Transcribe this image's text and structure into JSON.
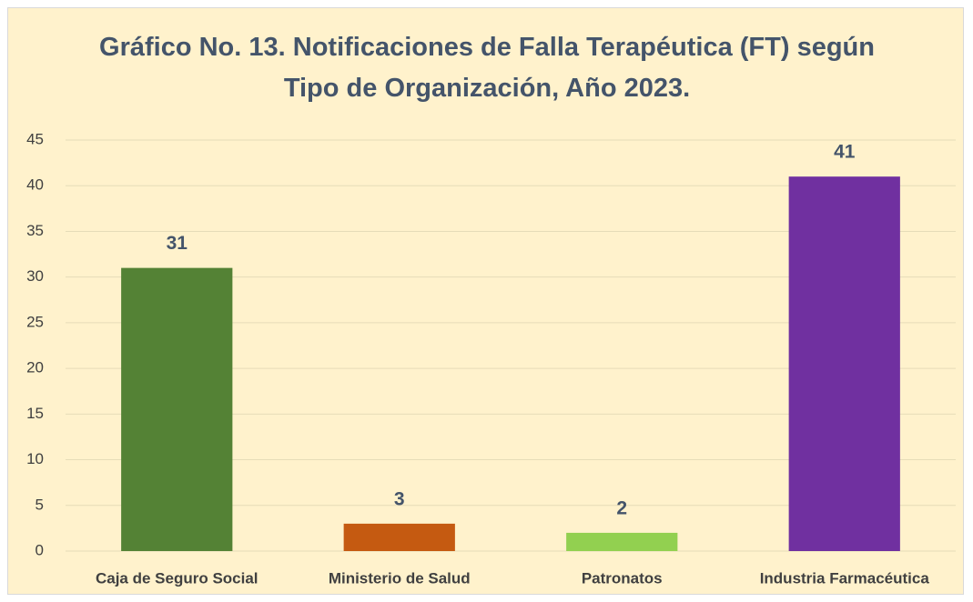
{
  "chart_data": {
    "type": "bar",
    "title": "Gráfico No. 13. Notificaciones de Falla Terapéutica (FT) según Tipo de Organización, Año 2023.",
    "categories": [
      "Caja de Seguro Social",
      "Ministerio de Salud",
      "Patronatos",
      "Industria Farmacéutica"
    ],
    "values": [
      31,
      3,
      2,
      41
    ],
    "colors": [
      "#548235",
      "#c55a11",
      "#92d050",
      "#7030a0"
    ],
    "ylim": [
      0,
      45
    ],
    "yticks": [
      0,
      5,
      10,
      15,
      20,
      25,
      30,
      35,
      40,
      45
    ],
    "grid": true
  }
}
